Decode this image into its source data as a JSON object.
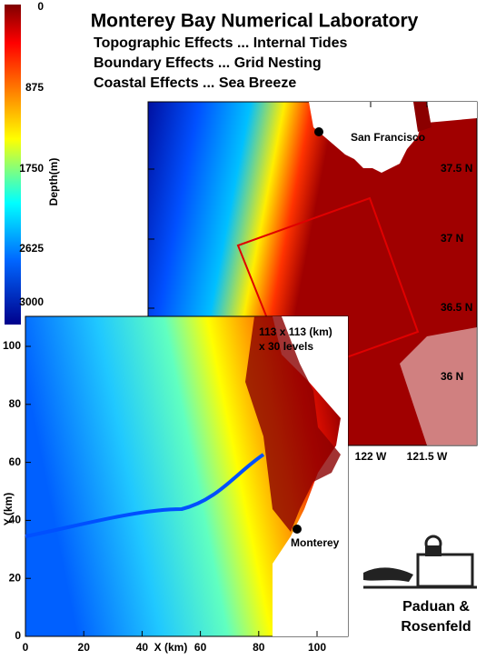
{
  "title": "Monterey Bay Numerical Laboratory",
  "subtitles": [
    "Topographic Effects ... Internal Tides",
    "Boundary Effects ... Grid Nesting",
    "Coastal Effects ... Sea Breeze"
  ],
  "colorbar": {
    "label": "Depth(m)",
    "ticks": [
      "0",
      "875",
      "1750",
      "2625",
      "3000"
    ]
  },
  "regional_map": {
    "place": "San Francisco",
    "lat_ticks": [
      "37.5 N",
      "37 N",
      "36.5 N",
      "36 N"
    ],
    "lon_ticks": [
      "122 W",
      "121.5 W"
    ]
  },
  "local_map": {
    "annotation": [
      "113 x 113 (km)",
      "x 30 levels"
    ],
    "place": "Monterey",
    "x_label": "X (km)",
    "y_label": "Y (km)",
    "x_ticks": [
      "0",
      "20",
      "40",
      "60",
      "80",
      "100"
    ],
    "y_ticks": [
      "0",
      "20",
      "40",
      "60",
      "80",
      "100"
    ]
  },
  "credit": [
    "Paduan &",
    "Rosenfeld"
  ]
}
